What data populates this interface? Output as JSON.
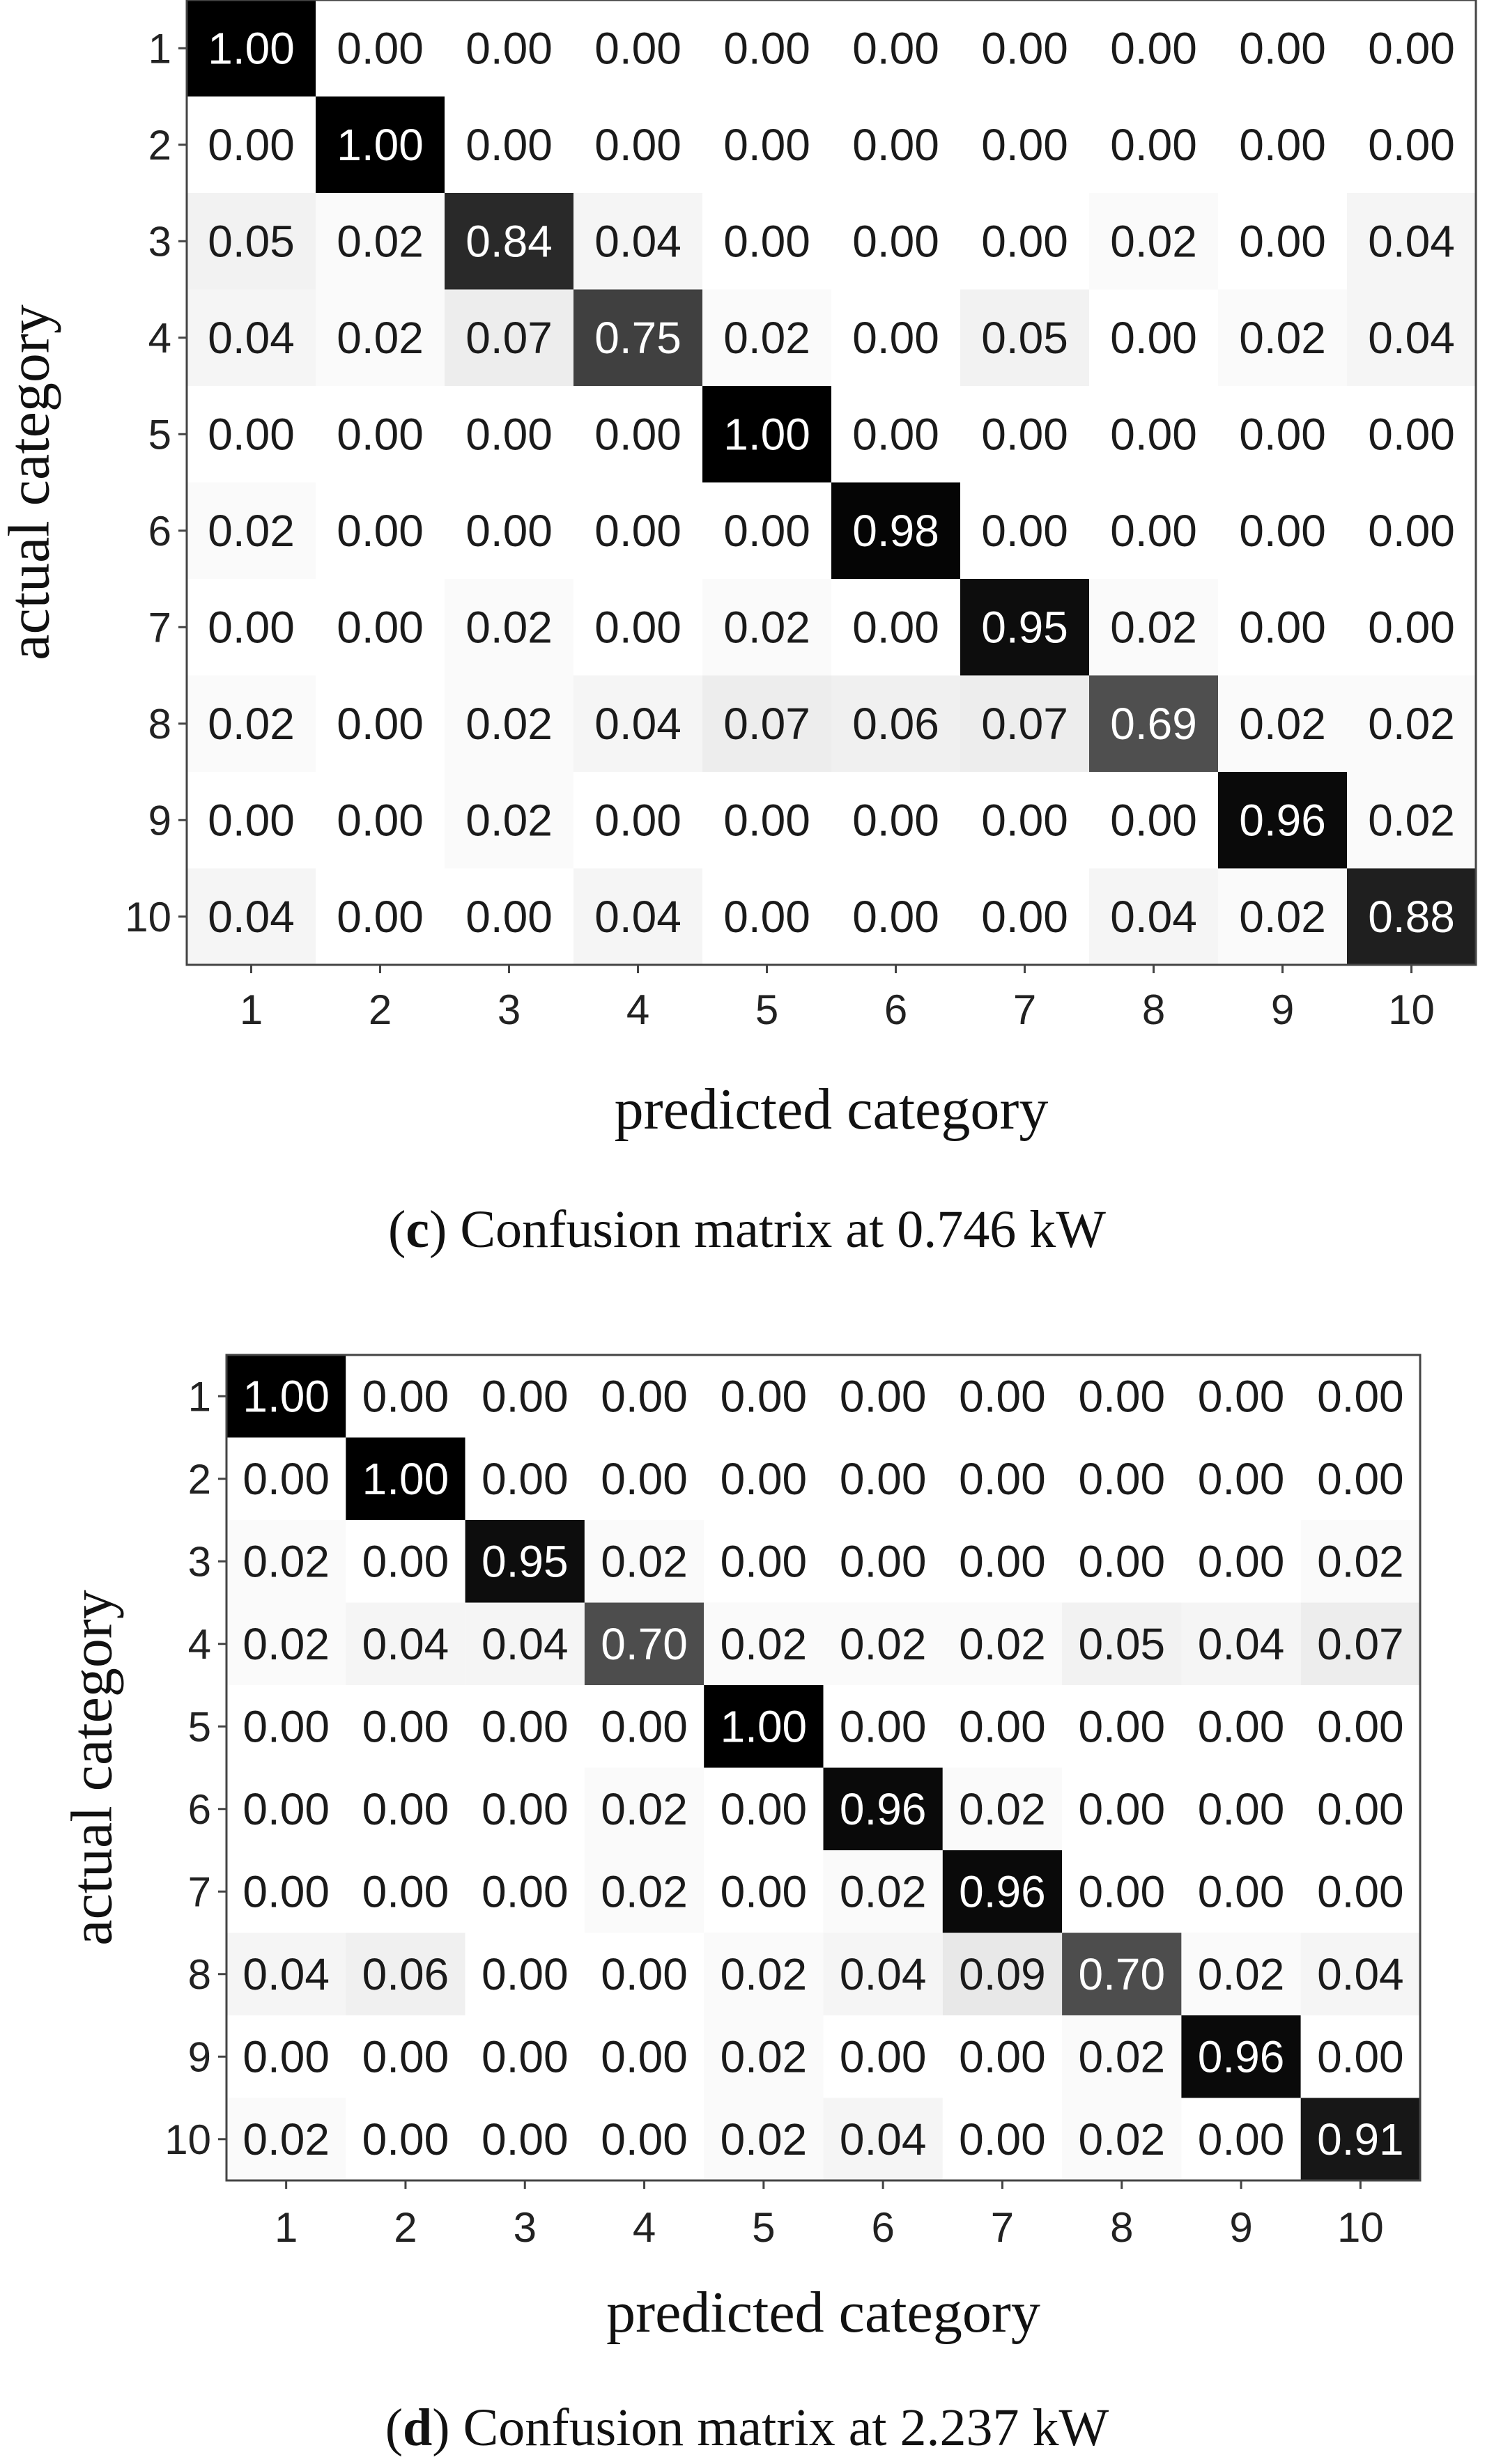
{
  "chart_data": [
    {
      "type": "heatmap",
      "caption_letter": "c",
      "caption_text": "Confusion matrix at 0.746 kW",
      "xlabel": "predicted category",
      "ylabel": "actual category",
      "x_categories": [
        "1",
        "2",
        "3",
        "4",
        "5",
        "6",
        "7",
        "8",
        "9",
        "10"
      ],
      "y_categories": [
        "1",
        "2",
        "3",
        "4",
        "5",
        "6",
        "7",
        "8",
        "9",
        "10"
      ],
      "values": [
        [
          1.0,
          0.0,
          0.0,
          0.0,
          0.0,
          0.0,
          0.0,
          0.0,
          0.0,
          0.0
        ],
        [
          0.0,
          1.0,
          0.0,
          0.0,
          0.0,
          0.0,
          0.0,
          0.0,
          0.0,
          0.0
        ],
        [
          0.05,
          0.02,
          0.84,
          0.04,
          0.0,
          0.0,
          0.0,
          0.02,
          0.0,
          0.04
        ],
        [
          0.04,
          0.02,
          0.07,
          0.75,
          0.02,
          0.0,
          0.05,
          0.0,
          0.02,
          0.04
        ],
        [
          0.0,
          0.0,
          0.0,
          0.0,
          1.0,
          0.0,
          0.0,
          0.0,
          0.0,
          0.0
        ],
        [
          0.02,
          0.0,
          0.0,
          0.0,
          0.0,
          0.98,
          0.0,
          0.0,
          0.0,
          0.0
        ],
        [
          0.0,
          0.0,
          0.02,
          0.0,
          0.02,
          0.0,
          0.95,
          0.02,
          0.0,
          0.0
        ],
        [
          0.02,
          0.0,
          0.02,
          0.04,
          0.07,
          0.06,
          0.07,
          0.69,
          0.02,
          0.02
        ],
        [
          0.0,
          0.0,
          0.02,
          0.0,
          0.0,
          0.0,
          0.0,
          0.0,
          0.96,
          0.02
        ],
        [
          0.04,
          0.0,
          0.0,
          0.04,
          0.0,
          0.0,
          0.0,
          0.04,
          0.02,
          0.88
        ]
      ],
      "colormap": {
        "low": "#ffffff",
        "high": "#000000"
      },
      "value_range": [
        0,
        1
      ]
    },
    {
      "type": "heatmap",
      "caption_letter": "d",
      "caption_text": "Confusion matrix at 2.237 kW",
      "xlabel": "predicted category",
      "ylabel": "actual category",
      "x_categories": [
        "1",
        "2",
        "3",
        "4",
        "5",
        "6",
        "7",
        "8",
        "9",
        "10"
      ],
      "y_categories": [
        "1",
        "2",
        "3",
        "4",
        "5",
        "6",
        "7",
        "8",
        "9",
        "10"
      ],
      "values": [
        [
          1.0,
          0.0,
          0.0,
          0.0,
          0.0,
          0.0,
          0.0,
          0.0,
          0.0,
          0.0
        ],
        [
          0.0,
          1.0,
          0.0,
          0.0,
          0.0,
          0.0,
          0.0,
          0.0,
          0.0,
          0.0
        ],
        [
          0.02,
          0.0,
          0.95,
          0.02,
          0.0,
          0.0,
          0.0,
          0.0,
          0.0,
          0.02
        ],
        [
          0.02,
          0.04,
          0.04,
          0.7,
          0.02,
          0.02,
          0.02,
          0.05,
          0.04,
          0.07
        ],
        [
          0.0,
          0.0,
          0.0,
          0.0,
          1.0,
          0.0,
          0.0,
          0.0,
          0.0,
          0.0
        ],
        [
          0.0,
          0.0,
          0.0,
          0.02,
          0.0,
          0.96,
          0.02,
          0.0,
          0.0,
          0.0
        ],
        [
          0.0,
          0.0,
          0.0,
          0.02,
          0.0,
          0.02,
          0.96,
          0.0,
          0.0,
          0.0
        ],
        [
          0.04,
          0.06,
          0.0,
          0.0,
          0.02,
          0.04,
          0.09,
          0.7,
          0.02,
          0.04
        ],
        [
          0.0,
          0.0,
          0.0,
          0.0,
          0.02,
          0.0,
          0.0,
          0.02,
          0.96,
          0.0
        ],
        [
          0.02,
          0.0,
          0.0,
          0.0,
          0.02,
          0.04,
          0.0,
          0.02,
          0.0,
          0.91
        ]
      ],
      "colormap": {
        "low": "#ffffff",
        "high": "#000000"
      },
      "value_range": [
        0,
        1
      ]
    }
  ]
}
